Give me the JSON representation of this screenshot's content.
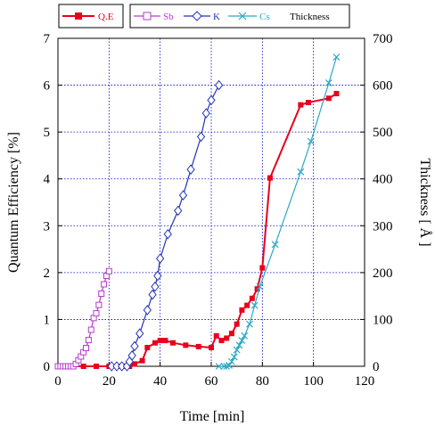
{
  "chart_data": {
    "type": "line",
    "xlabel": "Time [min]",
    "ylabel_left": "Quantum Efficiency [%]",
    "ylabel_right": "Thickness [ Å ]",
    "xlim": [
      0,
      120
    ],
    "ylim_left": [
      0,
      7
    ],
    "ylim_right": [
      0,
      700
    ],
    "x_ticks": [
      "0",
      "20",
      "40",
      "60",
      "80",
      "100",
      "120"
    ],
    "y_left_ticks": [
      "0",
      "1",
      "2",
      "3",
      "4",
      "5",
      "6",
      "7"
    ],
    "y_right_ticks": [
      "0",
      "100",
      "200",
      "300",
      "400",
      "500",
      "600",
      "700"
    ],
    "grid": true,
    "legend_position": "top",
    "legend_title": "Thickness",
    "colors": {
      "qe": "#e8001c",
      "sb": "#b63bcc",
      "k": "#2233bb",
      "cs": "#2ba8c8",
      "grid": "#0000cc"
    },
    "series": [
      {
        "name": "Q.E",
        "axis": "left",
        "key": "qe",
        "marker": "filled-square",
        "x": [
          0,
          2,
          4,
          10,
          15,
          20,
          24,
          26,
          28,
          30,
          33,
          35,
          38,
          40,
          42,
          45,
          50,
          55,
          60,
          62,
          64,
          66,
          68,
          70,
          72,
          74,
          76,
          78,
          80,
          83,
          95,
          98,
          106,
          109
        ],
        "y": [
          0,
          0,
          0,
          0,
          0,
          0,
          0,
          0,
          0,
          0.05,
          0.12,
          0.4,
          0.5,
          0.55,
          0.55,
          0.5,
          0.45,
          0.42,
          0.4,
          0.65,
          0.55,
          0.6,
          0.7,
          0.9,
          1.2,
          1.3,
          1.45,
          1.65,
          2.1,
          4.02,
          5.58,
          5.63,
          5.72,
          5.82
        ]
      },
      {
        "name": "Sb",
        "axis": "right",
        "key": "sb",
        "marker": "open-square",
        "x": [
          0,
          1,
          2,
          3,
          4,
          5,
          6,
          7,
          8,
          9,
          10,
          11,
          12,
          13,
          14,
          15,
          16,
          17,
          18,
          19,
          20
        ],
        "y": [
          0,
          0,
          0,
          0,
          0,
          0,
          0,
          5,
          13,
          21,
          30,
          39,
          56,
          78,
          103,
          113,
          131,
          155,
          175,
          193,
          203
        ]
      },
      {
        "name": "K",
        "axis": "right",
        "key": "k",
        "marker": "open-diamond",
        "x": [
          21,
          23,
          25,
          27,
          28,
          29,
          30,
          32,
          35,
          37,
          38,
          39,
          40,
          43,
          47,
          49,
          52,
          56,
          58,
          60,
          63
        ],
        "y": [
          0,
          0,
          0,
          0,
          10,
          23,
          43,
          70,
          120,
          153,
          170,
          193,
          230,
          282,
          332,
          365,
          420,
          490,
          540,
          568,
          600
        ]
      },
      {
        "name": "Cs",
        "axis": "right",
        "key": "cs",
        "marker": "x",
        "x": [
          63,
          65,
          66,
          67,
          68,
          69,
          70,
          71,
          72,
          73,
          75,
          77,
          79,
          85,
          95,
          99,
          106,
          109
        ],
        "y": [
          0,
          0,
          0,
          2,
          10,
          20,
          35,
          45,
          55,
          65,
          90,
          130,
          170,
          260,
          415,
          480,
          605,
          660
        ]
      }
    ]
  }
}
